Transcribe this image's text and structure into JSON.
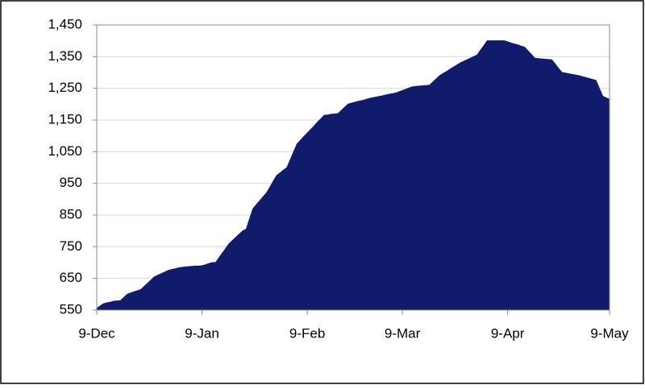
{
  "chart_data": {
    "type": "area",
    "color": "#101c6b",
    "grid": true,
    "categories": [
      "9-Dec",
      null,
      null,
      null,
      null,
      null,
      null,
      null,
      null,
      null,
      null,
      null,
      null,
      null,
      null,
      null,
      null,
      null,
      null,
      null,
      null,
      null,
      null,
      null,
      null,
      null,
      null,
      null,
      null,
      null,
      null,
      "9-Jan",
      null,
      null,
      null,
      null,
      null,
      null,
      null,
      null,
      null,
      null,
      null,
      null,
      null,
      null,
      null,
      null,
      null,
      null,
      null,
      null,
      null,
      null,
      null,
      null,
      null,
      null,
      null,
      null,
      null,
      null,
      "9-Feb",
      null,
      null,
      null,
      null,
      null,
      null,
      null,
      null,
      null,
      null,
      null,
      null,
      null,
      null,
      null,
      null,
      null,
      null,
      null,
      null,
      null,
      null,
      null,
      null,
      null,
      null,
      null,
      "9-Mar",
      null,
      null,
      null,
      null,
      null,
      null,
      null,
      null,
      null,
      null,
      null,
      null,
      null,
      null,
      null,
      null,
      null,
      null,
      null,
      null,
      null,
      null,
      null,
      null,
      null,
      null,
      null,
      null,
      null,
      null,
      "9-Apr",
      null,
      null,
      null,
      null,
      null,
      null,
      null,
      null,
      null,
      null,
      null,
      null,
      null,
      null,
      null,
      null,
      null,
      null,
      null,
      null,
      null,
      null,
      null,
      null,
      null,
      null,
      null,
      null,
      null,
      "9-May"
    ],
    "values": [
      555,
      563,
      570,
      573,
      575,
      578,
      579,
      580,
      590,
      600,
      604,
      608,
      611,
      615,
      625,
      635,
      645,
      655,
      660,
      665,
      670,
      675,
      678,
      680,
      683,
      685,
      686,
      687,
      688,
      689,
      689,
      690,
      693,
      697,
      700,
      700,
      715,
      730,
      745,
      760,
      770,
      780,
      790,
      800,
      805,
      838,
      870,
      883,
      895,
      908,
      920,
      938,
      957,
      975,
      983,
      992,
      1000,
      1025,
      1050,
      1075,
      1086,
      1098,
      1109,
      1120,
      1131,
      1143,
      1154,
      1165,
      1166,
      1168,
      1169,
      1170,
      1180,
      1190,
      1200,
      1203,
      1206,
      1209,
      1211,
      1214,
      1217,
      1220,
      1222,
      1224,
      1226,
      1229,
      1231,
      1233,
      1235,
      1239,
      1243,
      1247,
      1251,
      1255,
      1256,
      1257,
      1258,
      1259,
      1260,
      1270,
      1280,
      1290,
      1297,
      1303,
      1310,
      1317,
      1323,
      1330,
      1335,
      1340,
      1345,
      1350,
      1355,
      1370,
      1385,
      1400,
      1400,
      1400,
      1400,
      1400,
      1400,
      1397,
      1393,
      1390,
      1387,
      1383,
      1380,
      1368,
      1357,
      1345,
      1344,
      1343,
      1342,
      1341,
      1340,
      1327,
      1313,
      1300,
      1298,
      1296,
      1294,
      1292,
      1290,
      1287,
      1284,
      1281,
      1278,
      1275,
      1250,
      1225,
      1220,
      1215
    ],
    "ylim": [
      550,
      1450
    ],
    "yticks": [
      550,
      650,
      750,
      850,
      950,
      {
        "value": 1050,
        "label": "1,050"
      },
      {
        "value": 1150,
        "label": "1,150"
      },
      {
        "value": 1250,
        "label": "1,250"
      },
      {
        "value": 1350,
        "label": "1,350"
      },
      {
        "value": 1450,
        "label": "1,450"
      }
    ]
  }
}
